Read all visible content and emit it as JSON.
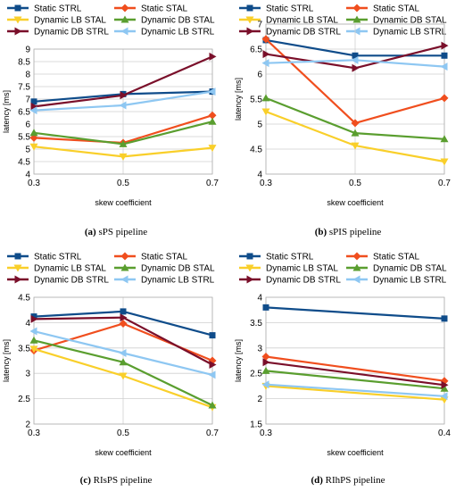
{
  "colors": {
    "Static STRL": "#0f4c8a",
    "Static STAL": "#f04e1e",
    "Dynamic LB STAL": "#f9cf2a",
    "Dynamic DB STAL": "#5a9e2f",
    "Dynamic DB STRL": "#7a0f2a",
    "Dynamic LB STRL": "#8ec7f2"
  },
  "markers": {
    "Static STRL": "square",
    "Static STAL": "diamond",
    "Dynamic LB STAL": "triangle-down",
    "Dynamic DB STAL": "triangle-up",
    "Dynamic DB STRL": "triangle-right",
    "Dynamic LB STRL": "triangle-left"
  },
  "captions": [
    {
      "letter": "(a)",
      "text": "sPS pipeline"
    },
    {
      "letter": "(b)",
      "text": "sPIS pipeline"
    },
    {
      "letter": "(c)",
      "text": "RIsPS pipeline"
    },
    {
      "letter": "(d)",
      "text": "RIhPS pipeline"
    }
  ],
  "chart_data": [
    {
      "type": "line",
      "xlabel": "skew coefficient",
      "ylabel": "latency [ms]",
      "x": [
        0.3,
        0.5,
        0.7
      ],
      "xticks": [
        "0.3",
        "0.5",
        "0.7"
      ],
      "ylim": [
        4,
        9
      ],
      "yticks": [
        "4",
        "4.5",
        "5",
        "5.5",
        "6",
        "6.5",
        "7",
        "7.5",
        "8",
        "8.5",
        "9"
      ],
      "grid": true,
      "legend": "top",
      "series": [
        {
          "name": "Static STRL",
          "values": [
            6.9,
            7.2,
            7.3
          ]
        },
        {
          "name": "Static STAL",
          "values": [
            5.45,
            5.25,
            6.35
          ]
        },
        {
          "name": "Dynamic LB STAL",
          "values": [
            5.1,
            4.7,
            5.05
          ]
        },
        {
          "name": "Dynamic DB STAL",
          "values": [
            5.65,
            5.2,
            6.1
          ]
        },
        {
          "name": "Dynamic DB STRL",
          "values": [
            6.7,
            7.15,
            8.7
          ]
        },
        {
          "name": "Dynamic LB STRL",
          "values": [
            6.55,
            6.75,
            7.3
          ]
        }
      ]
    },
    {
      "type": "line",
      "xlabel": "skew coefficient",
      "ylabel": "latency [ms]",
      "x": [
        0.3,
        0.5,
        0.7
      ],
      "xticks": [
        "0.3",
        "0.5",
        "0.7"
      ],
      "ylim": [
        4,
        7
      ],
      "yticks": [
        "4",
        "4.5",
        "5",
        "5.5",
        "6",
        "6.5",
        "7"
      ],
      "grid": true,
      "legend": "top",
      "series": [
        {
          "name": "Static STRL",
          "values": [
            6.68,
            6.37,
            6.37
          ]
        },
        {
          "name": "Static STAL",
          "values": [
            6.7,
            5.02,
            5.52
          ]
        },
        {
          "name": "Dynamic LB STAL",
          "values": [
            5.25,
            4.57,
            4.25
          ]
        },
        {
          "name": "Dynamic DB STAL",
          "values": [
            5.52,
            4.82,
            4.7
          ]
        },
        {
          "name": "Dynamic DB STRL",
          "values": [
            6.4,
            6.12,
            6.57
          ]
        },
        {
          "name": "Dynamic LB STRL",
          "values": [
            6.22,
            6.28,
            6.15
          ]
        }
      ]
    },
    {
      "type": "line",
      "xlabel": "skew coefficient",
      "ylabel": "latency [ms]",
      "x": [
        0.3,
        0.5,
        0.7
      ],
      "xticks": [
        "0.3",
        "0.5",
        "0.7"
      ],
      "ylim": [
        2,
        4.5
      ],
      "yticks": [
        "2",
        "2.5",
        "3",
        "3.5",
        "4",
        "4.5"
      ],
      "grid": true,
      "legend": "top",
      "series": [
        {
          "name": "Static STRL",
          "values": [
            4.12,
            4.22,
            3.75
          ]
        },
        {
          "name": "Static STAL",
          "values": [
            3.45,
            3.98,
            3.25
          ]
        },
        {
          "name": "Dynamic LB STAL",
          "values": [
            3.48,
            2.95,
            2.33
          ]
        },
        {
          "name": "Dynamic DB STAL",
          "values": [
            3.65,
            3.22,
            2.37
          ]
        },
        {
          "name": "Dynamic DB STRL",
          "values": [
            4.07,
            4.1,
            3.17
          ]
        },
        {
          "name": "Dynamic LB STRL",
          "values": [
            3.83,
            3.4,
            2.97
          ]
        }
      ]
    },
    {
      "type": "line",
      "xlabel": "skew coefficient",
      "ylabel": "latency [ms]",
      "x": [
        0.3,
        0.4
      ],
      "xticks": [
        "0.3",
        "0.4"
      ],
      "ylim": [
        1.5,
        4
      ],
      "yticks": [
        "1.5",
        "2",
        "2.5",
        "3",
        "3.5",
        "4"
      ],
      "grid": true,
      "legend": "top",
      "series": [
        {
          "name": "Static STRL",
          "values": [
            3.8,
            3.58
          ]
        },
        {
          "name": "Static STAL",
          "values": [
            2.83,
            2.35
          ]
        },
        {
          "name": "Dynamic LB STAL",
          "values": [
            2.25,
            1.98
          ]
        },
        {
          "name": "Dynamic DB STAL",
          "values": [
            2.55,
            2.2
          ]
        },
        {
          "name": "Dynamic DB STRL",
          "values": [
            2.72,
            2.27
          ]
        },
        {
          "name": "Dynamic LB STRL",
          "values": [
            2.28,
            2.05
          ]
        }
      ]
    }
  ]
}
